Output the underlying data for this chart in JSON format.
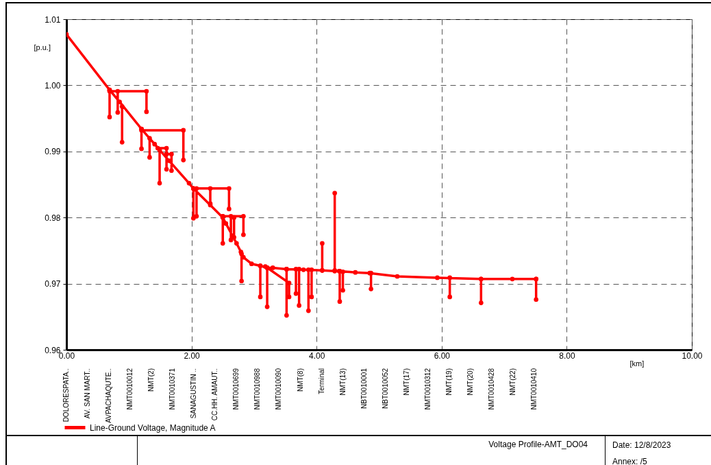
{
  "chart_data": {
    "type": "line",
    "xlabel": "[km]",
    "ylabel": "[p.u.]",
    "xlim": [
      0,
      10
    ],
    "xticks": [
      {
        "value": 0,
        "label": "0.00"
      },
      {
        "value": 2,
        "label": "2.00"
      },
      {
        "value": 4,
        "label": "4.00"
      },
      {
        "value": 6,
        "label": "6.00"
      },
      {
        "value": 8,
        "label": "8.00"
      },
      {
        "value": 10,
        "label": "10.00"
      }
    ],
    "ylim": [
      0.96,
      1.01
    ],
    "yticks": [
      0.96,
      0.97,
      0.98,
      0.99,
      {
        "value": 1,
        "label": "1.00"
      },
      1.01
    ],
    "grid": true,
    "legend": "bottom left",
    "marker": "circle",
    "line_style": "solid",
    "series": [
      {
        "name": "Line-Ground Voltage, Magnitude A",
        "color": "#ff0000",
        "x": [
          0,
          0.69,
          0.85,
          1.2,
          1.41,
          1.64,
          1.96,
          2.03,
          2.3,
          2.5,
          2.55,
          2.72,
          2.79,
          2.83,
          2.96,
          3.1,
          3.21,
          3.3,
          3.52,
          3.79,
          4.09,
          4.29,
          4.36,
          4.62,
          4.85,
          5.29,
          5.93,
          6.63,
          7.13,
          7.51,
          null,
          0.69,
          0.69,
          null,
          0.69,
          1.28,
          1.28,
          null,
          0.82,
          0.82,
          null,
          0.89,
          0.89,
          null,
          1.2,
          1.2,
          null,
          1.2,
          1.87,
          1.87,
          null,
          1.33,
          1.33,
          null,
          1.46,
          1.6,
          1.6,
          null,
          1.49,
          1.49,
          null,
          1.6,
          1.68,
          1.68,
          null,
          2.03,
          2.6,
          2.6,
          null,
          2.3,
          2.3,
          null,
          2.03,
          2.03,
          null,
          2.08,
          2.08,
          null,
          2.5,
          2.83,
          2.83,
          null,
          2.5,
          2.5,
          null,
          2.63,
          2.63,
          null,
          2.68,
          2.68,
          null,
          2.8,
          2.8,
          null,
          3.1,
          3.1,
          null,
          3.21,
          3.21,
          null,
          3.18,
          3.56,
          3.56,
          null,
          3.52,
          3.52,
          null,
          3.67,
          3.67,
          null,
          3.72,
          3.72,
          null,
          3.87,
          3.87,
          null,
          3.92,
          3.92,
          null,
          4.09,
          4.09,
          null,
          4.29,
          4.29,
          null,
          4.37,
          4.37,
          null,
          4.42,
          4.42,
          null,
          4.87,
          4.87,
          null,
          6.13,
          6.13,
          null,
          6.63,
          6.63,
          null,
          7.51,
          7.51
        ],
        "values": [
          1.0077,
          0.9993,
          0.9975,
          0.9934,
          0.9911,
          0.9886,
          0.9852,
          0.9844,
          0.9819,
          0.98,
          0.9791,
          0.9761,
          0.9748,
          0.974,
          0.973,
          0.9727,
          0.9724,
          0.9724,
          0.9722,
          0.9721,
          0.972,
          0.9719,
          0.9719,
          0.9717,
          0.9716,
          0.9711,
          0.9709,
          0.9707,
          0.9707,
          0.9707,
          null,
          0.9993,
          0.9952,
          null,
          0.9991,
          0.9991,
          0.996,
          null,
          0.9991,
          0.9959,
          null,
          0.9968,
          0.9914,
          null,
          0.9934,
          0.9904,
          null,
          0.9932,
          0.9932,
          0.9887,
          null,
          0.992,
          0.9891,
          null,
          0.9905,
          0.9905,
          0.9873,
          null,
          0.9902,
          0.9852,
          null,
          0.9896,
          0.9896,
          0.9871,
          null,
          0.9844,
          0.9844,
          0.9813,
          null,
          0.9844,
          0.9821,
          null,
          0.9844,
          0.9799,
          null,
          0.9844,
          0.9802,
          null,
          0.9802,
          0.9802,
          0.9774,
          null,
          0.9802,
          0.9761,
          null,
          0.9802,
          0.9766,
          null,
          0.98,
          0.977,
          null,
          0.9745,
          0.9704,
          null,
          0.9727,
          0.968,
          null,
          0.9724,
          0.9665,
          null,
          0.9726,
          0.9701,
          0.968,
          null,
          0.9722,
          0.9652,
          null,
          0.9722,
          0.9685,
          null,
          0.9722,
          0.9667,
          null,
          0.9721,
          0.9659,
          null,
          0.9721,
          0.968,
          null,
          0.972,
          0.9761,
          null,
          0.972,
          0.9837,
          null,
          0.9719,
          0.9673,
          null,
          0.9718,
          0.969,
          null,
          0.9716,
          0.9692,
          null,
          0.9709,
          0.968,
          null,
          0.9707,
          0.9671,
          null,
          0.9707,
          0.9676
        ]
      }
    ],
    "annotations": [
      "DOLORESPATA..",
      "AV. SAN MART..",
      "AVPACHAQUTE..",
      "NMT0010012",
      "NMT(2)",
      "NMT0010371",
      "SANAGUSTIN ..",
      "CC.HH. AMAUT..",
      "NMT0010699",
      "NMT0010988",
      "NMT0010090",
      "NMT(8)",
      "Terminal",
      "NMT(13)",
      "NBT0010001",
      "NBT0010052",
      "NMT(17)",
      "NMT0010312",
      "NMT(19)",
      "NMT(20)",
      "NMT0010428",
      "NMT(22)",
      "NMT0010410",
      "Voltage Profile-AMT_DO04",
      "Date: 12/8/2023",
      "Annex:  /5"
    ]
  }
}
